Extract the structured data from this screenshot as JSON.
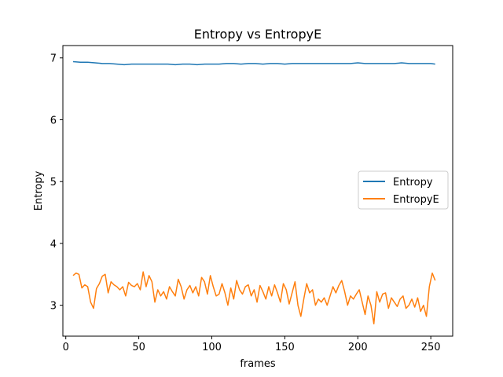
{
  "chart_data": {
    "type": "line",
    "title": "Entropy vs EntropyE",
    "xlabel": "frames",
    "ylabel": "Entropy",
    "xlim": [
      -2,
      265
    ],
    "ylim": [
      2.5,
      7.2
    ],
    "xticks": [
      0,
      50,
      100,
      150,
      200,
      250
    ],
    "yticks": [
      3,
      4,
      5,
      6,
      7
    ],
    "grid": false,
    "legend_position": "center-right",
    "series": [
      {
        "name": "Entropy",
        "color": "#1f77b4",
        "x": [
          5,
          10,
          15,
          20,
          25,
          30,
          35,
          40,
          45,
          50,
          55,
          60,
          65,
          70,
          75,
          80,
          85,
          90,
          95,
          100,
          105,
          110,
          115,
          120,
          125,
          130,
          135,
          140,
          145,
          150,
          155,
          160,
          165,
          170,
          175,
          180,
          185,
          190,
          195,
          200,
          205,
          210,
          215,
          220,
          225,
          230,
          235,
          240,
          245,
          250,
          253
        ],
        "y": [
          6.94,
          6.93,
          6.93,
          6.92,
          6.91,
          6.91,
          6.9,
          6.89,
          6.9,
          6.9,
          6.9,
          6.9,
          6.9,
          6.9,
          6.89,
          6.9,
          6.9,
          6.89,
          6.9,
          6.9,
          6.9,
          6.91,
          6.91,
          6.9,
          6.91,
          6.91,
          6.9,
          6.91,
          6.91,
          6.9,
          6.91,
          6.91,
          6.91,
          6.91,
          6.91,
          6.91,
          6.91,
          6.91,
          6.91,
          6.92,
          6.91,
          6.91,
          6.91,
          6.91,
          6.91,
          6.92,
          6.91,
          6.91,
          6.91,
          6.91,
          6.9
        ]
      },
      {
        "name": "EntropyE",
        "color": "#ff7f0e",
        "x": [
          5,
          7,
          9,
          11,
          13,
          15,
          17,
          19,
          21,
          23,
          25,
          27,
          29,
          31,
          33,
          35,
          37,
          39,
          41,
          43,
          45,
          47,
          49,
          51,
          53,
          55,
          57,
          59,
          61,
          63,
          65,
          67,
          69,
          71,
          73,
          75,
          77,
          79,
          81,
          83,
          85,
          87,
          89,
          91,
          93,
          95,
          97,
          99,
          101,
          103,
          105,
          107,
          109,
          111,
          113,
          115,
          117,
          119,
          121,
          123,
          125,
          127,
          129,
          131,
          133,
          135,
          137,
          139,
          141,
          143,
          145,
          147,
          149,
          151,
          153,
          155,
          157,
          159,
          161,
          163,
          165,
          167,
          169,
          171,
          173,
          175,
          177,
          179,
          181,
          183,
          185,
          187,
          189,
          191,
          193,
          195,
          197,
          199,
          201,
          203,
          205,
          207,
          209,
          211,
          213,
          215,
          217,
          219,
          221,
          223,
          225,
          227,
          229,
          231,
          233,
          235,
          237,
          239,
          241,
          243,
          245,
          247,
          249,
          251,
          253
        ],
        "y": [
          3.48,
          3.52,
          3.5,
          3.28,
          3.33,
          3.3,
          3.05,
          2.95,
          3.27,
          3.35,
          3.47,
          3.5,
          3.2,
          3.38,
          3.33,
          3.3,
          3.25,
          3.3,
          3.15,
          3.37,
          3.32,
          3.3,
          3.35,
          3.25,
          3.54,
          3.3,
          3.48,
          3.38,
          3.05,
          3.25,
          3.15,
          3.22,
          3.1,
          3.3,
          3.22,
          3.15,
          3.42,
          3.3,
          3.1,
          3.25,
          3.32,
          3.2,
          3.3,
          3.15,
          3.45,
          3.38,
          3.18,
          3.48,
          3.3,
          3.15,
          3.18,
          3.35,
          3.2,
          3.0,
          3.28,
          3.1,
          3.4,
          3.25,
          3.18,
          3.3,
          3.33,
          3.15,
          3.25,
          3.05,
          3.32,
          3.22,
          3.1,
          3.3,
          3.15,
          3.33,
          3.2,
          3.05,
          3.35,
          3.25,
          3.02,
          3.2,
          3.38,
          3.0,
          2.82,
          3.1,
          3.35,
          3.2,
          3.25,
          3.0,
          3.1,
          3.05,
          3.12,
          3.0,
          3.15,
          3.3,
          3.2,
          3.32,
          3.4,
          3.22,
          3.0,
          3.15,
          3.1,
          3.18,
          3.25,
          3.05,
          2.85,
          3.15,
          3.0,
          2.7,
          3.22,
          3.05,
          3.18,
          3.2,
          2.95,
          3.12,
          3.05,
          2.98,
          3.1,
          3.15,
          2.95,
          3.0,
          3.1,
          2.97,
          3.12,
          2.9,
          3.0,
          2.82,
          3.3,
          3.52,
          3.4
        ]
      }
    ]
  }
}
